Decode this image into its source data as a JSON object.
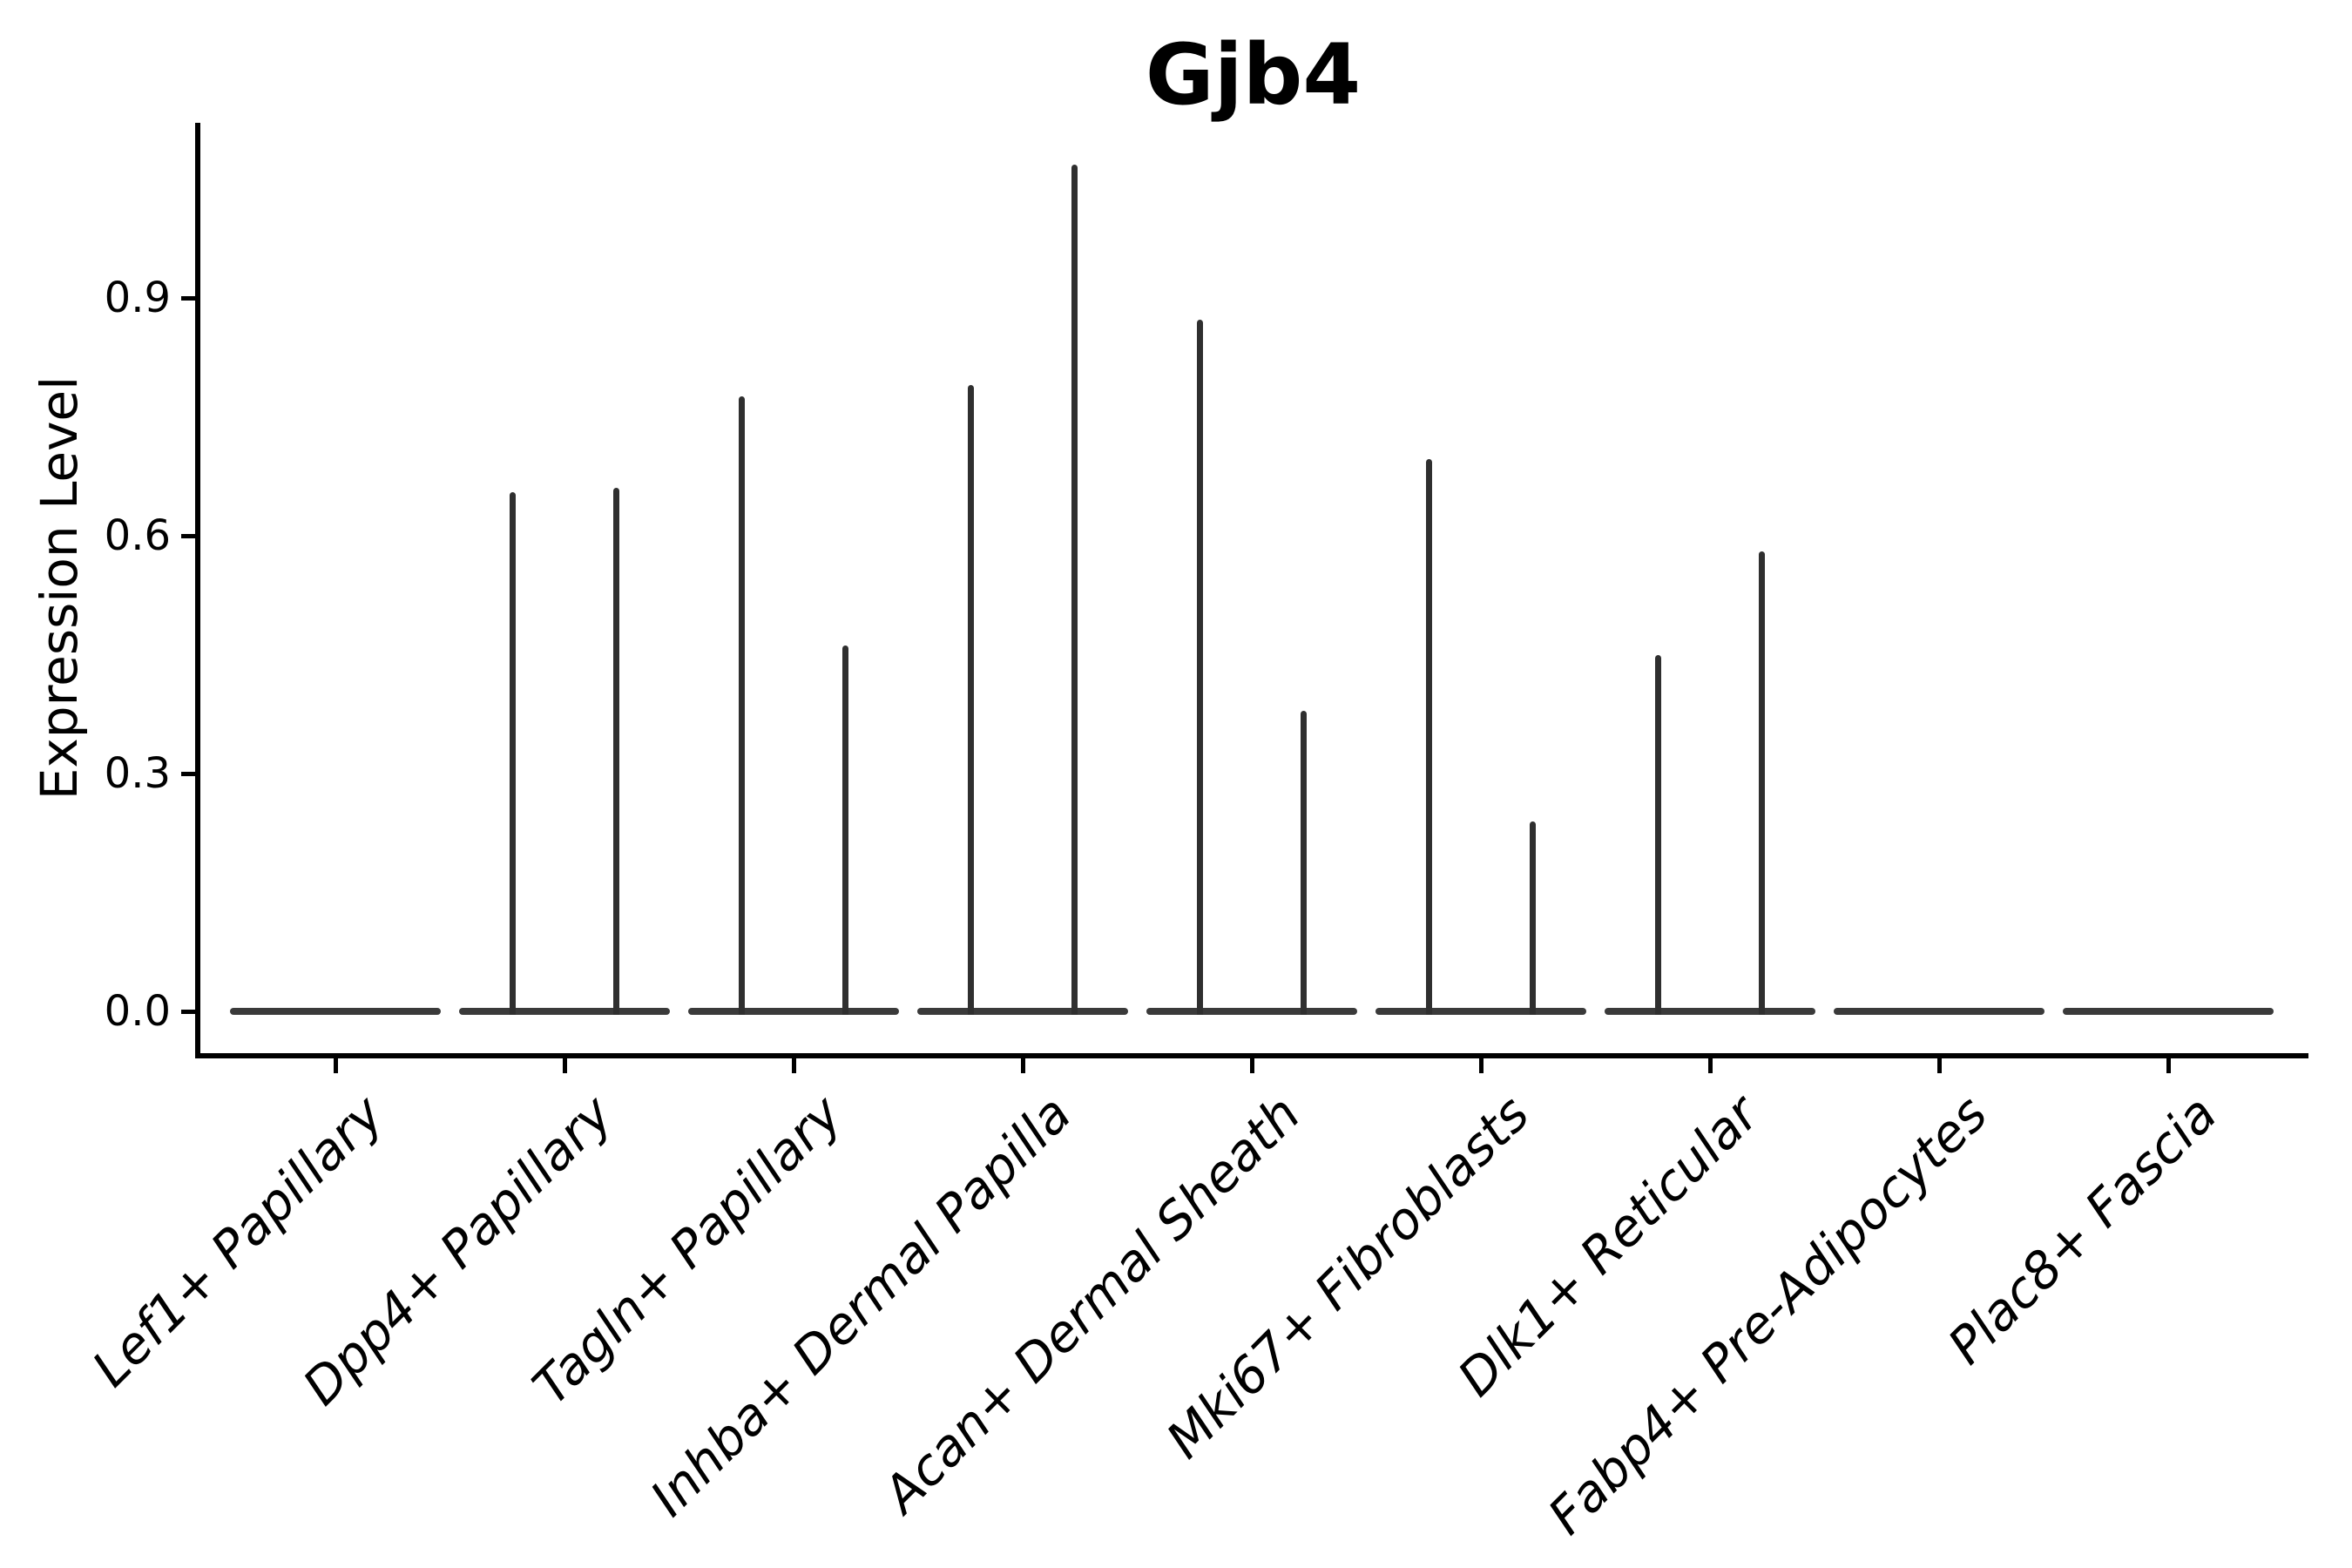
{
  "title": "Gjb4",
  "ylabel": "Expression Level",
  "colors": {
    "background": "#ffffff",
    "axis": "#000000",
    "violin_line": "#2f2f2f",
    "violin_base": "#3a3a3a",
    "text": "#000000"
  },
  "chart_data": {
    "type": "violin",
    "title": "Gjb4",
    "xlabel": "",
    "ylabel": "Expression Level",
    "ylim": [
      -0.05,
      1.12
    ],
    "yticks": [
      {
        "value": 0.0,
        "label": "0.0"
      },
      {
        "value": 0.3,
        "label": "0.3"
      },
      {
        "value": 0.6,
        "label": "0.6"
      },
      {
        "value": 0.9,
        "label": "0.9"
      }
    ],
    "grid": false,
    "legend": "none",
    "x_tick_rotation": 45,
    "note": "Sparse single-cell expression violins: each category collapses to a flat base at 0 with thin density spikes",
    "categories": [
      {
        "label": "Lef1+ Papillary",
        "spikes": []
      },
      {
        "label": "Dpp4+ Papillary",
        "spikes": [
          0.655,
          0.66
        ]
      },
      {
        "label": "Tagln+ Papillary",
        "spikes": [
          0.776,
          0.462
        ]
      },
      {
        "label": "Inhba+ Dermal Papilla",
        "spikes": [
          0.79,
          1.068
        ]
      },
      {
        "label": "Acan+ Dermal Sheath",
        "spikes": [
          0.872,
          0.379
        ]
      },
      {
        "label": "Mki67+ Fibroblasts",
        "spikes": [
          0.697,
          0.24
        ]
      },
      {
        "label": "Dlk1+ Reticular",
        "spikes": [
          0.449,
          0.58
        ]
      },
      {
        "label": "Fabp4+ Pre-Adipocytes",
        "spikes": []
      },
      {
        "label": "Plac8+ Fascia",
        "spikes": []
      }
    ]
  }
}
